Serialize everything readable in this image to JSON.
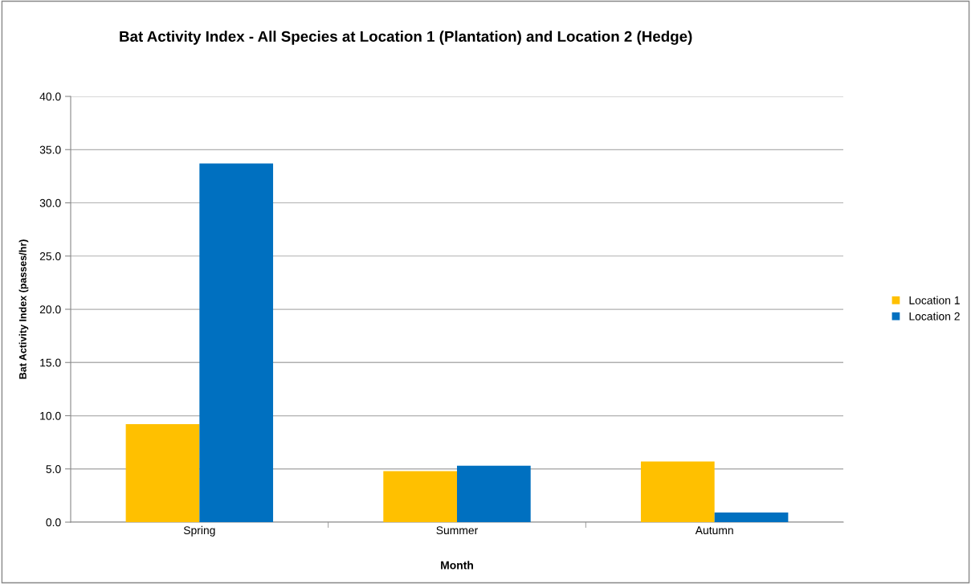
{
  "chart_data": {
    "type": "bar",
    "title": "Bat Activity Index - All Species at Location 1 (Plantation) and Location 2 (Hedge)",
    "xlabel": "Month",
    "ylabel": "Bat Activity Index (passes/hr)",
    "categories": [
      "Spring",
      "Summer",
      "Autumn"
    ],
    "series": [
      {
        "name": "Location 1",
        "color": "#ffc000",
        "values": [
          9.2,
          4.8,
          5.7
        ]
      },
      {
        "name": "Location 2",
        "color": "#0070c0",
        "values": [
          33.7,
          5.3,
          0.9
        ]
      }
    ],
    "ylim": [
      0,
      40
    ],
    "yticks": [
      {
        "value": 0,
        "label": "0.0"
      },
      {
        "value": 5,
        "label": "5.0"
      },
      {
        "value": 10,
        "label": "10.0"
      },
      {
        "value": 15,
        "label": "15.0"
      },
      {
        "value": 20,
        "label": "20.0"
      },
      {
        "value": 25,
        "label": "25.0"
      },
      {
        "value": 30,
        "label": "30.0"
      },
      {
        "value": 35,
        "label": "35.0"
      },
      {
        "value": 40,
        "label": "40.0"
      }
    ],
    "grid": "y",
    "legend": "right"
  }
}
